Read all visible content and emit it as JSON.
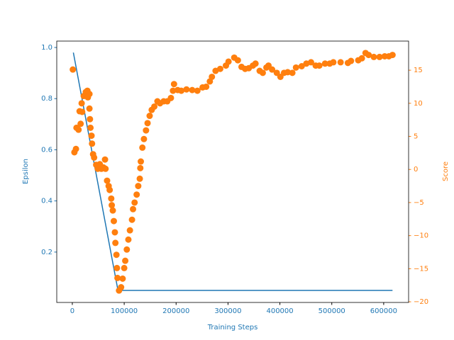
{
  "chart_data": {
    "type": "line",
    "xlabel": "Training Steps",
    "ylabel": "Epsilon",
    "y2label": "Score",
    "xlim": [
      -30000,
      648000
    ],
    "xticks": [
      0,
      100000,
      200000,
      300000,
      400000,
      500000,
      600000
    ],
    "ylim": [
      0.003,
      1.025
    ],
    "yticks": [
      0.2,
      0.4,
      0.6,
      0.8,
      {
        "value": 1,
        "label": "1.0"
      }
    ],
    "y2lim": [
      -20.1,
      19.4
    ],
    "y2ticks": [
      {
        "value": -20,
        "label": "−20"
      },
      {
        "value": -15,
        "label": "−15"
      },
      {
        "value": -10,
        "label": "−10"
      },
      {
        "value": -5,
        "label": "−5"
      },
      0,
      5,
      10,
      15
    ],
    "ycolor": "#1f77b4",
    "y2color": "#ff7f0e",
    "series": [
      {
        "type": "line",
        "axis": "y",
        "color": "#1f77b4",
        "x": [
          2000,
          88000,
          617000
        ],
        "values": [
          0.98,
          0.05,
          0.05
        ]
      },
      {
        "type": "scatter",
        "axis": "y2",
        "color": "#ff7f0e",
        "x": [
          1000,
          4000,
          7000,
          8000,
          12000,
          14000,
          16000,
          19000,
          18000,
          22000,
          26000,
          29000,
          33000,
          30000,
          33000,
          34000,
          35000,
          37000,
          38000,
          40000,
          42000,
          46000,
          49000,
          53000,
          56000,
          60000,
          63000,
          64000,
          67000,
          70000,
          72000,
          75000,
          76000,
          78000,
          80000,
          82000,
          83000,
          85000,
          86000,
          87000,
          90000,
          94000,
          97000,
          100000,
          102000,
          105000,
          108000,
          111000,
          115000,
          117000,
          120000,
          124000,
          127000,
          130000,
          131000,
          132000,
          135000,
          138000,
          142000,
          145000,
          149000,
          153000,
          158000,
          164000,
          169000,
          176000,
          183000,
          190000,
          194000,
          196000,
          203000,
          210000,
          220000,
          231000,
          241000,
          251000,
          258000,
          265000,
          269000,
          276000,
          285000,
          296000,
          301000,
          312000,
          319000,
          326000,
          333000,
          340000,
          348000,
          353000,
          361000,
          367000,
          374000,
          378000,
          385000,
          394000,
          401000,
          408000,
          415000,
          424000,
          431000,
          442000,
          451000,
          460000,
          469000,
          476000,
          487000,
          496000,
          503000,
          517000,
          531000,
          537000,
          551000,
          558000,
          565000,
          571000,
          581000,
          592000,
          602000,
          610000,
          617000
        ],
        "values": [
          15.1,
          2.6,
          3.1,
          6.3,
          6,
          8.8,
          6.9,
          8.7,
          10,
          11.1,
          11.7,
          11.9,
          11.4,
          10.9,
          9.2,
          7.6,
          6.3,
          5.1,
          3.9,
          2.3,
          1.8,
          0.7,
          0.1,
          0.8,
          0.1,
          0.3,
          1.5,
          0.1,
          -1.7,
          -2.5,
          -3.1,
          -4.4,
          -5.4,
          -6.2,
          -7.8,
          -9.5,
          -11.1,
          -12.9,
          -14.9,
          -16.4,
          -18.3,
          -17.8,
          -16.5,
          -14.9,
          -13.8,
          -12.1,
          -10.6,
          -9.2,
          -7.6,
          -6,
          -5,
          -3.8,
          -2.5,
          -1.4,
          0.2,
          1.2,
          3.3,
          4.6,
          5.9,
          7,
          8.1,
          9,
          9.5,
          10.3,
          10,
          10.3,
          10.3,
          10.8,
          11.9,
          12.9,
          12,
          11.9,
          12.1,
          12,
          11.9,
          12.4,
          12.5,
          13.3,
          14,
          14.9,
          15.2,
          15.7,
          16.3,
          16.9,
          16.5,
          15.5,
          15.2,
          15.3,
          15.7,
          16,
          14.9,
          14.6,
          15.4,
          15.7,
          15.1,
          14.6,
          14,
          14.6,
          14.7,
          14.6,
          15.4,
          15.6,
          16,
          16.2,
          15.7,
          15.7,
          16,
          16,
          16.2,
          16.2,
          16.1,
          16.4,
          16.5,
          16.8,
          17.6,
          17.3,
          17,
          17,
          17.1,
          17.1,
          17.3
        ]
      }
    ]
  }
}
